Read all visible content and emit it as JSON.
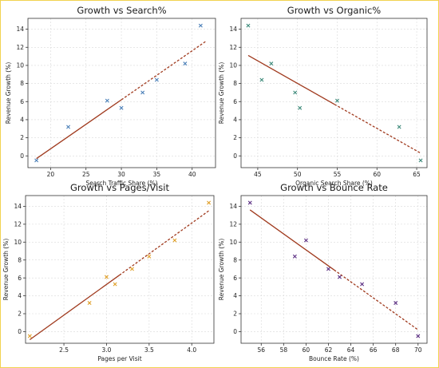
{
  "chart_data": [
    {
      "type": "scatter",
      "title": "Growth vs Search%",
      "xlabel": "Search Traffic Share (%)",
      "ylabel": "Revenue Growth (%)",
      "xlim": [
        16.8,
        43.3
      ],
      "ylim": [
        -1.3,
        15.2
      ],
      "xticks": [
        20,
        25,
        30,
        35,
        40
      ],
      "yticks": [
        0,
        2,
        4,
        6,
        8,
        10,
        12,
        14
      ],
      "grid": true,
      "marker_color": "#4a7fb8",
      "trend_color": "#a03a1e",
      "x": [
        18,
        22.5,
        28,
        30,
        33,
        35,
        39,
        41.2
      ],
      "y": [
        -0.5,
        3.2,
        6.1,
        5.3,
        7.0,
        8.4,
        10.2,
        14.4
      ],
      "trend": {
        "x": [
          18,
          42
        ],
        "y": [
          -0.3,
          12.7
        ]
      }
    },
    {
      "type": "scatter",
      "title": "Growth vs Organic%",
      "xlabel": "Organic Search Share (%)",
      "ylabel": "Revenue Growth (%)",
      "xlim": [
        42.9,
        66.3
      ],
      "ylim": [
        -1.3,
        15.2
      ],
      "xticks": [
        45,
        50,
        55,
        60,
        65
      ],
      "yticks": [
        0,
        2,
        4,
        6,
        8,
        10,
        12,
        14
      ],
      "grid": true,
      "marker_color": "#3d8a7a",
      "trend_color": "#a03a1e",
      "x": [
        43.8,
        45.5,
        46.7,
        49.7,
        50.3,
        55,
        62.8,
        65.5
      ],
      "y": [
        14.4,
        8.4,
        10.2,
        7.0,
        5.3,
        6.1,
        3.2,
        -0.5
      ],
      "trend": {
        "x": [
          43.8,
          65.5
        ],
        "y": [
          11.1,
          0.3
        ]
      }
    },
    {
      "type": "scatter",
      "title": "Growth vs Pages/Visit",
      "xlabel": "Pages per Visit",
      "ylabel": "Revenue Growth (%)",
      "xlim": [
        2.05,
        4.26
      ],
      "ylim": [
        -1.3,
        15.2
      ],
      "xticks": [
        2.5,
        3.0,
        3.5,
        4.0
      ],
      "yticks": [
        0,
        2,
        4,
        6,
        8,
        10,
        12,
        14
      ],
      "grid": true,
      "marker_color": "#e0a02a",
      "trend_color": "#a03a1e",
      "x": [
        2.1,
        2.8,
        3.0,
        3.1,
        3.3,
        3.5,
        3.8,
        4.2
      ],
      "y": [
        -0.5,
        3.2,
        6.1,
        5.3,
        7.0,
        8.4,
        10.2,
        14.4
      ],
      "trend": {
        "x": [
          2.1,
          4.2
        ],
        "y": [
          -0.9,
          13.5
        ]
      }
    },
    {
      "type": "scatter",
      "title": "Growth vs Bounce Rate",
      "xlabel": "Bounce Rate (%)",
      "ylabel": "Revenue Growth (%)",
      "xlim": [
        54.2,
        70.8
      ],
      "ylim": [
        -1.3,
        15.2
      ],
      "xticks": [
        56,
        58,
        60,
        62,
        64,
        66,
        68,
        70
      ],
      "yticks": [
        0,
        2,
        4,
        6,
        8,
        10,
        12,
        14
      ],
      "grid": true,
      "marker_color": "#5a2d82",
      "trend_color": "#a03a1e",
      "x": [
        55,
        59,
        60,
        62,
        63,
        65,
        68,
        70
      ],
      "y": [
        14.4,
        8.4,
        10.2,
        7.0,
        6.1,
        5.3,
        3.2,
        -0.5
      ],
      "trend": {
        "x": [
          55,
          70
        ],
        "y": [
          13.6,
          0.2
        ]
      }
    }
  ]
}
